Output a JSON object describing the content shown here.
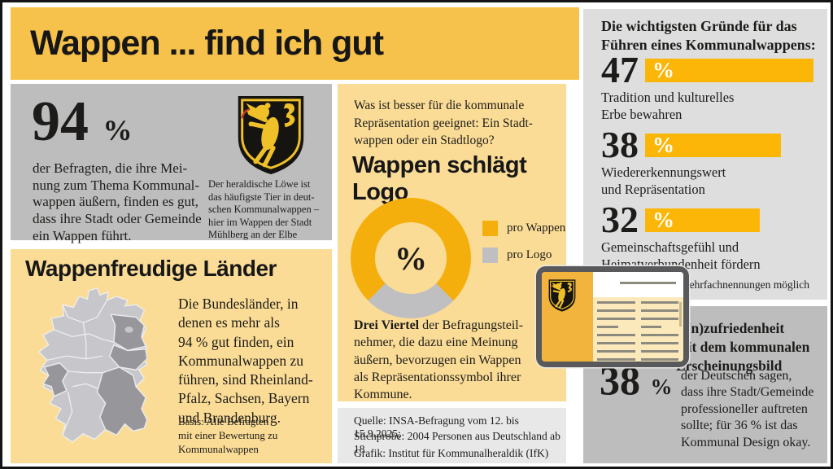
{
  "colors": {
    "gold": "#F7C24B",
    "light_yellow": "#FBDC96",
    "accent_orange": "#F5AF0C",
    "bar_yellow": "#FBB608",
    "gray_medium": "#BDBDBD",
    "gray_light": "#DEDEDE",
    "gray_source": "#E8E8E8"
  },
  "header": {
    "title": "Wappen ... find ich gut"
  },
  "stat94": {
    "value": "94",
    "unit": "%",
    "text": "der Befragten, die ihre Mei-\nnung zum Thema Kommunal-\nwappen äußern, finden es gut,\ndass ihre Stadt oder Gemeinde\nein Wappen führt.",
    "arms_caption": "Der heraldische Löwe ist\ndas häufigste Tier in deut-\nschen Kommunalwappen –\nhier im Wappen der Stadt\nMühlberg an der Elbe"
  },
  "laender": {
    "heading": "Wappenfreudige Länder",
    "body": "Die Bundesländer, in\ndenen es mehr als\n94 % gut finden, ein\nKommunalwappen zu\nführen, sind Rheinland-\nPfalz, Sachsen, Bayern\nund Brandenburg.",
    "basis": "Basis: Alle Befragten\nmit einer Bewertung zu\nKommunalwappen"
  },
  "comparison": {
    "question": "Was ist besser für die kommunale\nRepräsentation geeignet: Ein Stadt-\nwappen oder ein Stadtlogo?",
    "heading": "Wappen schlägt Logo",
    "center_label": "%",
    "legend": [
      "pro Wappen",
      "pro Logo"
    ],
    "conclusion_lead": "Drei Viertel",
    "conclusion_rest": " der Befragungsteil-\nnehmer, die dazu eine Meinung\näußern, bevorzugen ein Wappen\nals Repräsentationssymbol ihrer\nKommune."
  },
  "source": {
    "line1": "Quelle: INSA-Befragung vom 12. bis 15.9.2025;",
    "line2": "Stichprobe: 2004 Personen aus Deutschland ab 18",
    "line3": "Grafik: Institut für Kommunalheraldik (IfK)"
  },
  "reasons": {
    "heading": "Die wichtigsten Gründe für das\nFühren eines Kommunalwappens:",
    "unit": "%",
    "note": "Mehrfachnennungen möglich",
    "items": [
      {
        "label": "Tradition und kulturelles\nErbe bewahren"
      },
      {
        "label": "Wiedererkennungswert\nund Repräsentation"
      },
      {
        "label": "Gemeinschaftsgefühl und\nHeimatverbundenheit fördern"
      }
    ]
  },
  "satisfaction": {
    "heading": "(Un)zufriedenheit\nmit dem kommunalen\nErscheinungsbild",
    "value": "38",
    "unit": "%",
    "text": "der Deutschen sagen,\ndass ihre Stadt/Gemeinde\nprofessioneller auftreten\nsollte; für 36 % ist das\nKommunal Design okay."
  },
  "chart_data": [
    {
      "type": "pie",
      "subtype": "donut",
      "title": "Wappen schlägt Logo",
      "labels": [
        "pro Wappen",
        "pro Logo"
      ],
      "values": [
        75,
        25
      ],
      "colors": [
        "#F5AF0C",
        "#BFBFC1"
      ],
      "center_label": "%",
      "legend_position": "right",
      "note": "Drei Viertel der Befragungsteilnehmer bevorzugen ein Wappen"
    },
    {
      "type": "bar",
      "title": "Die wichtigsten Gründe für das Führen eines Kommunalwappens",
      "categories": [
        "Tradition und kulturelles Erbe bewahren",
        "Wiedererkennungswert und Repräsentation",
        "Gemeinschaftsgefühl und Heimatverbundenheit fördern"
      ],
      "values": [
        47,
        38,
        32
      ],
      "unit": "%",
      "bar_color": "#FBB608",
      "note": "Mehrfachnennungen möglich"
    }
  ]
}
